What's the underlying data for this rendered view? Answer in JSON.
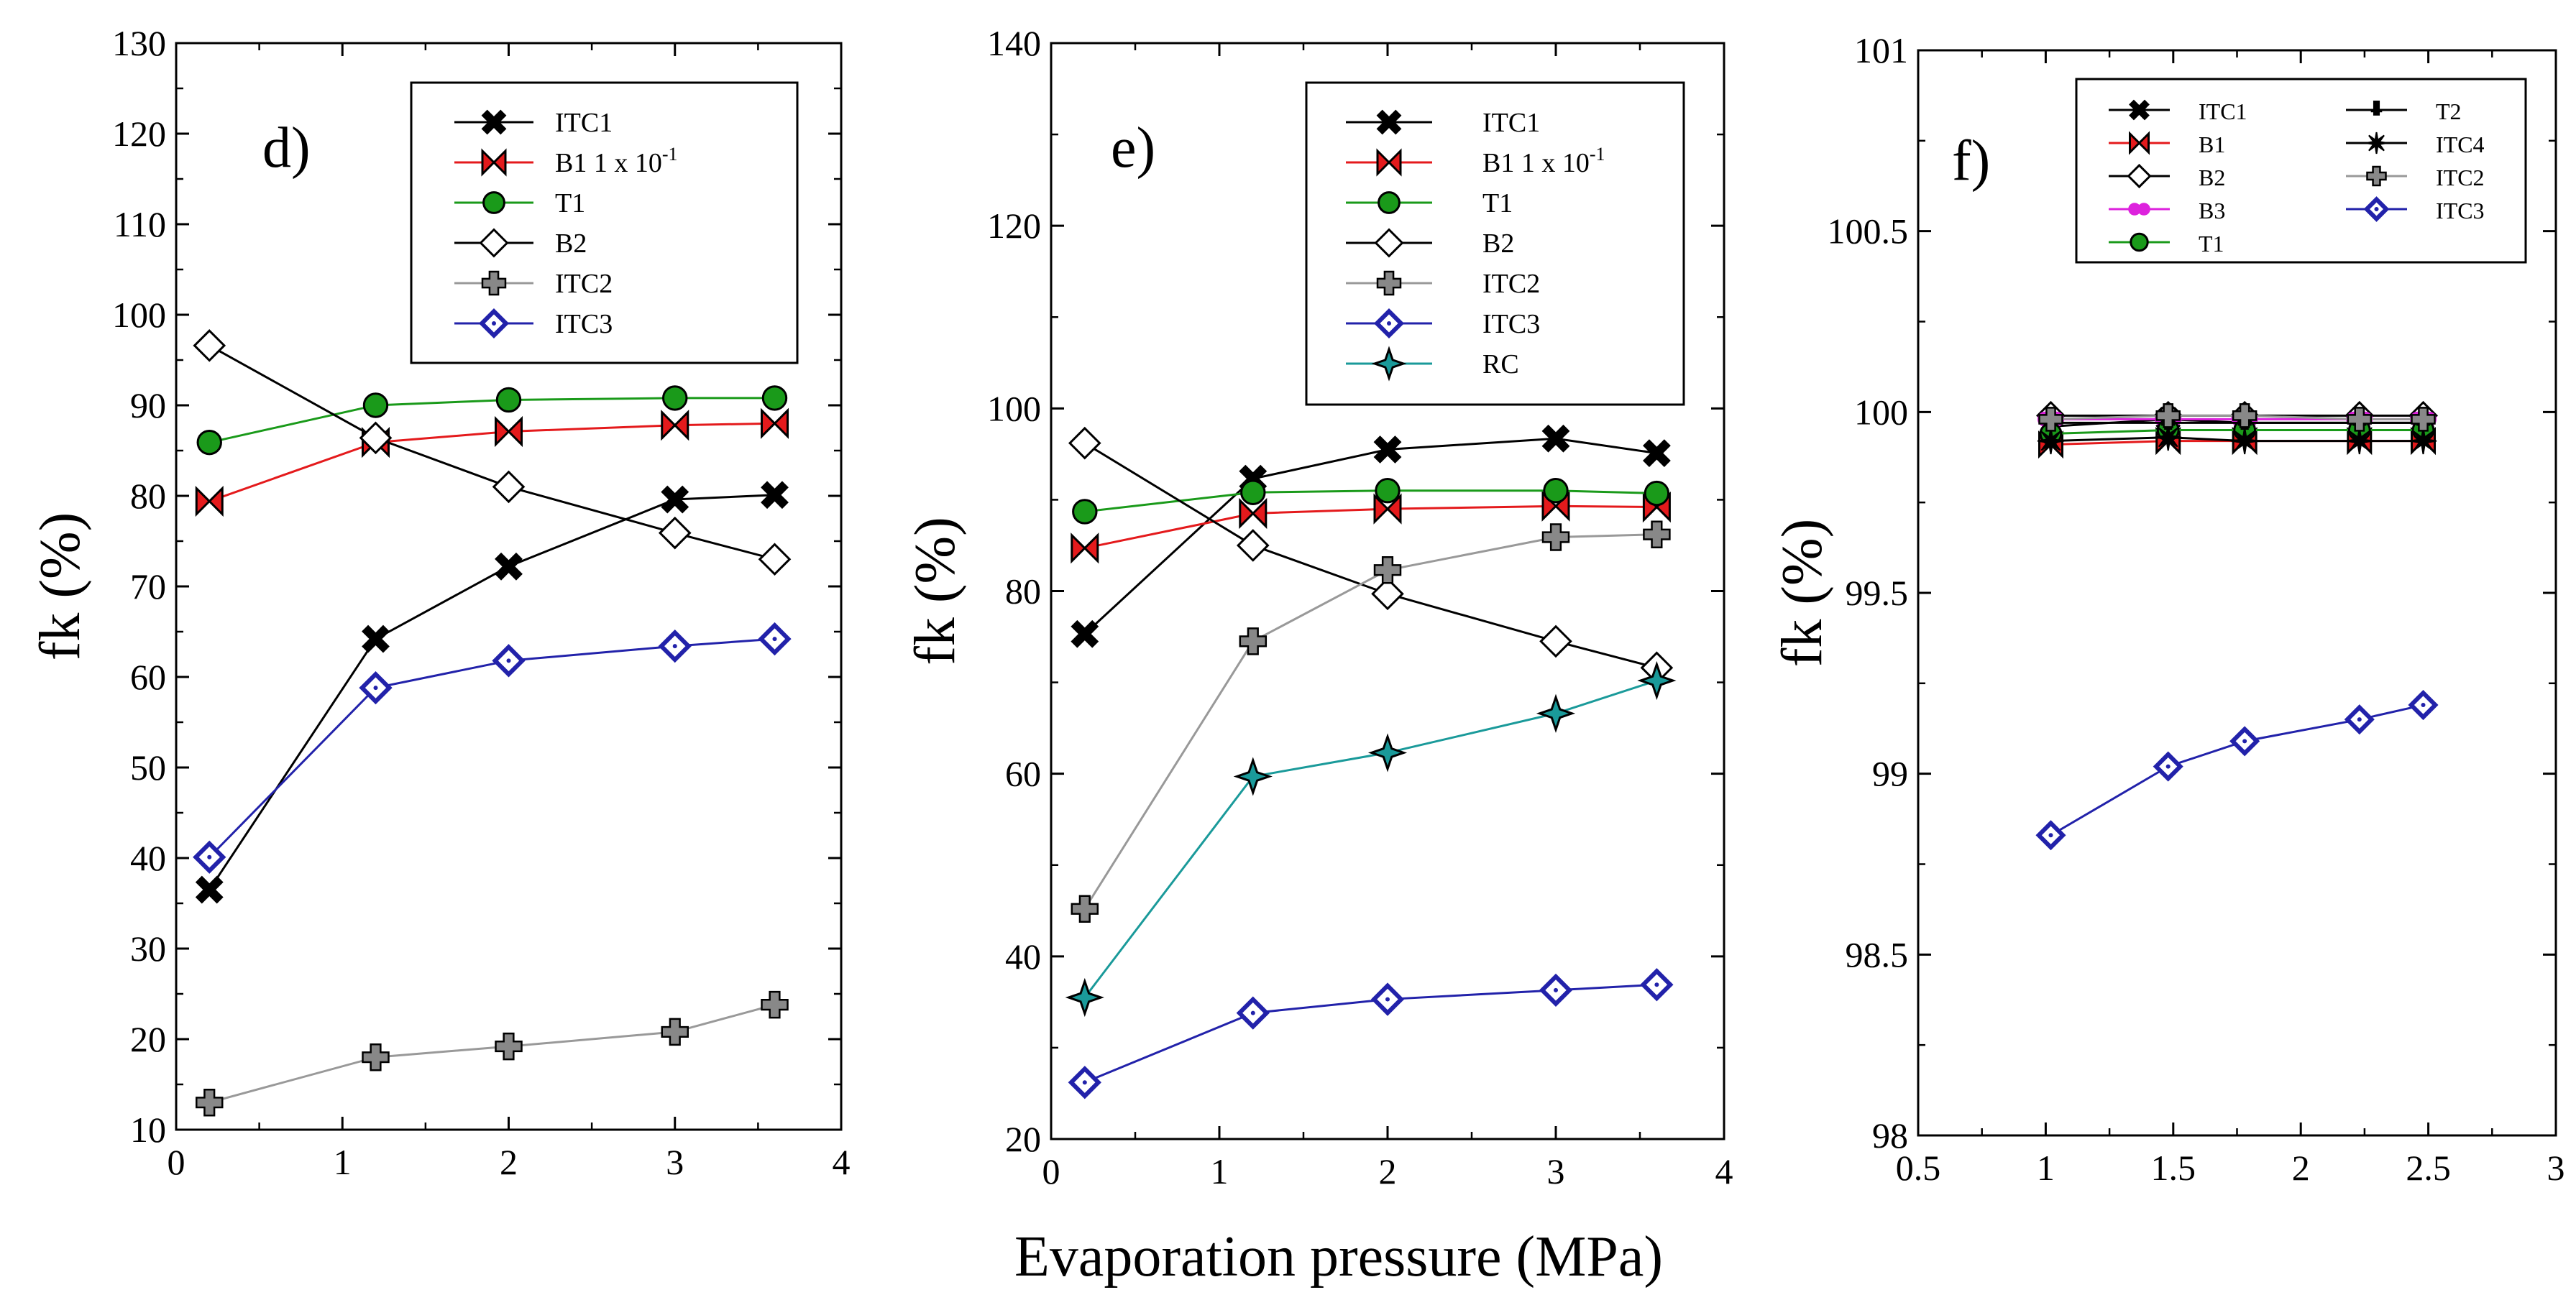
{
  "figure": {
    "shared_xlabel": "Evaporation pressure (MPa)"
  },
  "chart_data": [
    {
      "type": "line",
      "panel": "d)",
      "ylabel": "fk (%)",
      "xlim": [
        0,
        4
      ],
      "ylim": [
        10,
        130
      ],
      "xticks": [
        0,
        1,
        2,
        3,
        4
      ],
      "xtick_labels": [
        "0",
        "1",
        "2",
        "3",
        "4"
      ],
      "yticks": [
        10,
        20,
        30,
        40,
        50,
        60,
        70,
        80,
        90,
        100,
        110,
        120,
        130
      ],
      "ytick_labels": [
        "10",
        "20",
        "30",
        "40",
        "50",
        "60",
        "70",
        "80",
        "90",
        "100",
        "110",
        "120",
        "130"
      ],
      "legend_columns": 1,
      "x": [
        0.2,
        1.2,
        2.0,
        3.0,
        3.6
      ],
      "series": [
        {
          "name": "ITC1",
          "values": [
            36.5,
            64.2,
            72.2,
            79.6,
            80.1
          ],
          "color": "#000000",
          "marker": "x"
        },
        {
          "name": "B1",
          "label_suffix": "  1 x 10",
          "label_sup": "-1",
          "values": [
            79.4,
            85.9,
            87.1,
            87.8,
            88.0
          ],
          "color": "#e41a1c",
          "marker": "bowtie"
        },
        {
          "name": "T1",
          "values": [
            85.9,
            90.0,
            90.6,
            90.8,
            90.8
          ],
          "color": "#1a9a1a",
          "marker": "circle"
        },
        {
          "name": "B2",
          "values": [
            96.6,
            86.4,
            81.0,
            75.9,
            73.0
          ],
          "color": "#000000",
          "marker": "diamond-open"
        },
        {
          "name": "ITC2",
          "values": [
            13.0,
            18.0,
            19.2,
            20.8,
            23.8
          ],
          "color": "#999999",
          "marker": "plus"
        },
        {
          "name": "ITC3",
          "values": [
            40.1,
            58.8,
            61.8,
            63.4,
            64.2
          ],
          "color": "#2222aa",
          "marker": "diamond-blue"
        }
      ]
    },
    {
      "type": "line",
      "panel": "e)",
      "ylabel": "fk (%)",
      "xlim": [
        0,
        4
      ],
      "ylim": [
        20,
        140
      ],
      "xticks": [
        0,
        1,
        2,
        3,
        4
      ],
      "xtick_labels": [
        "0",
        "1",
        "2",
        "3",
        "4"
      ],
      "yticks": [
        20,
        40,
        60,
        80,
        100,
        120,
        140
      ],
      "ytick_labels": [
        "20",
        "40",
        "60",
        "80",
        "100",
        "120",
        "140"
      ],
      "legend_columns": 1,
      "x": [
        0.2,
        1.2,
        2.0,
        3.0,
        3.6
      ],
      "series": [
        {
          "name": "ITC1",
          "values": [
            75.3,
            92.3,
            95.5,
            96.7,
            95.1
          ],
          "color": "#000000",
          "marker": "x"
        },
        {
          "name": "B1",
          "label_suffix": " 1 x 10",
          "label_sup": "-1",
          "values": [
            84.7,
            88.5,
            89.0,
            89.3,
            89.2
          ],
          "color": "#e41a1c",
          "marker": "bowtie"
        },
        {
          "name": "T1",
          "values": [
            88.7,
            90.8,
            91.0,
            91.0,
            90.7
          ],
          "color": "#1a9a1a",
          "marker": "circle"
        },
        {
          "name": "B2",
          "values": [
            96.2,
            85.0,
            79.7,
            74.5,
            71.6
          ],
          "color": "#000000",
          "marker": "diamond-open"
        },
        {
          "name": "ITC2",
          "values": [
            45.2,
            74.5,
            82.3,
            85.9,
            86.2
          ],
          "color": "#999999",
          "marker": "plus"
        },
        {
          "name": "ITC3",
          "values": [
            26.2,
            33.8,
            35.3,
            36.3,
            36.9
          ],
          "color": "#2222aa",
          "marker": "diamond-blue"
        },
        {
          "name": "RC",
          "values": [
            35.5,
            59.7,
            62.3,
            66.6,
            70.2
          ],
          "color": "#1a9a9a",
          "marker": "star4"
        }
      ]
    },
    {
      "type": "line",
      "panel": "f)",
      "ylabel": "fk (%)",
      "xlim": [
        0.5,
        3
      ],
      "ylim": [
        98,
        101
      ],
      "xticks": [
        0.5,
        1,
        1.5,
        2,
        2.5,
        3
      ],
      "xtick_labels": [
        "0.5",
        "1",
        "1.5",
        "2",
        "2.5",
        "3"
      ],
      "yticks": [
        98,
        98.5,
        99,
        99.5,
        100,
        100.5,
        101
      ],
      "ytick_labels": [
        "98",
        "98.5",
        "99",
        "99.5",
        "100",
        "100.5",
        "101"
      ],
      "legend_columns": 2,
      "x": [
        1.02,
        1.48,
        1.78,
        2.23,
        2.48
      ],
      "series": [
        {
          "name": "ITC1",
          "values": [
            99.96,
            99.98,
            99.97,
            99.97,
            99.97
          ],
          "color": "#000000",
          "marker": "x"
        },
        {
          "name": "B1",
          "values": [
            99.91,
            99.92,
            99.92,
            99.92,
            99.92
          ],
          "color": "#e41a1c",
          "marker": "bowtie"
        },
        {
          "name": "B2",
          "values": [
            99.99,
            99.99,
            99.99,
            99.99,
            99.99
          ],
          "color": "#000000",
          "marker": "diamond-open"
        },
        {
          "name": "B3",
          "values": [
            99.98,
            99.98,
            99.98,
            99.98,
            99.98
          ],
          "color": "#dd22dd",
          "marker": "double-circle"
        },
        {
          "name": "T1",
          "values": [
            99.94,
            99.95,
            99.95,
            99.95,
            99.95
          ],
          "color": "#1a9a1a",
          "marker": "circle"
        },
        {
          "name": "T2",
          "values": [
            99.97,
            99.97,
            99.97,
            99.97,
            99.97
          ],
          "color": "#000000",
          "marker": "tshape"
        },
        {
          "name": "ITC4",
          "values": [
            99.92,
            99.93,
            99.92,
            99.92,
            99.92
          ],
          "color": "#000000",
          "marker": "star8"
        },
        {
          "name": "ITC2",
          "values": [
            99.98,
            99.99,
            99.99,
            99.98,
            99.98
          ],
          "color": "#999999",
          "marker": "plus"
        },
        {
          "name": "ITC3",
          "values": [
            98.83,
            99.02,
            99.09,
            99.15,
            99.19
          ],
          "color": "#2222aa",
          "marker": "diamond-blue"
        }
      ]
    }
  ]
}
